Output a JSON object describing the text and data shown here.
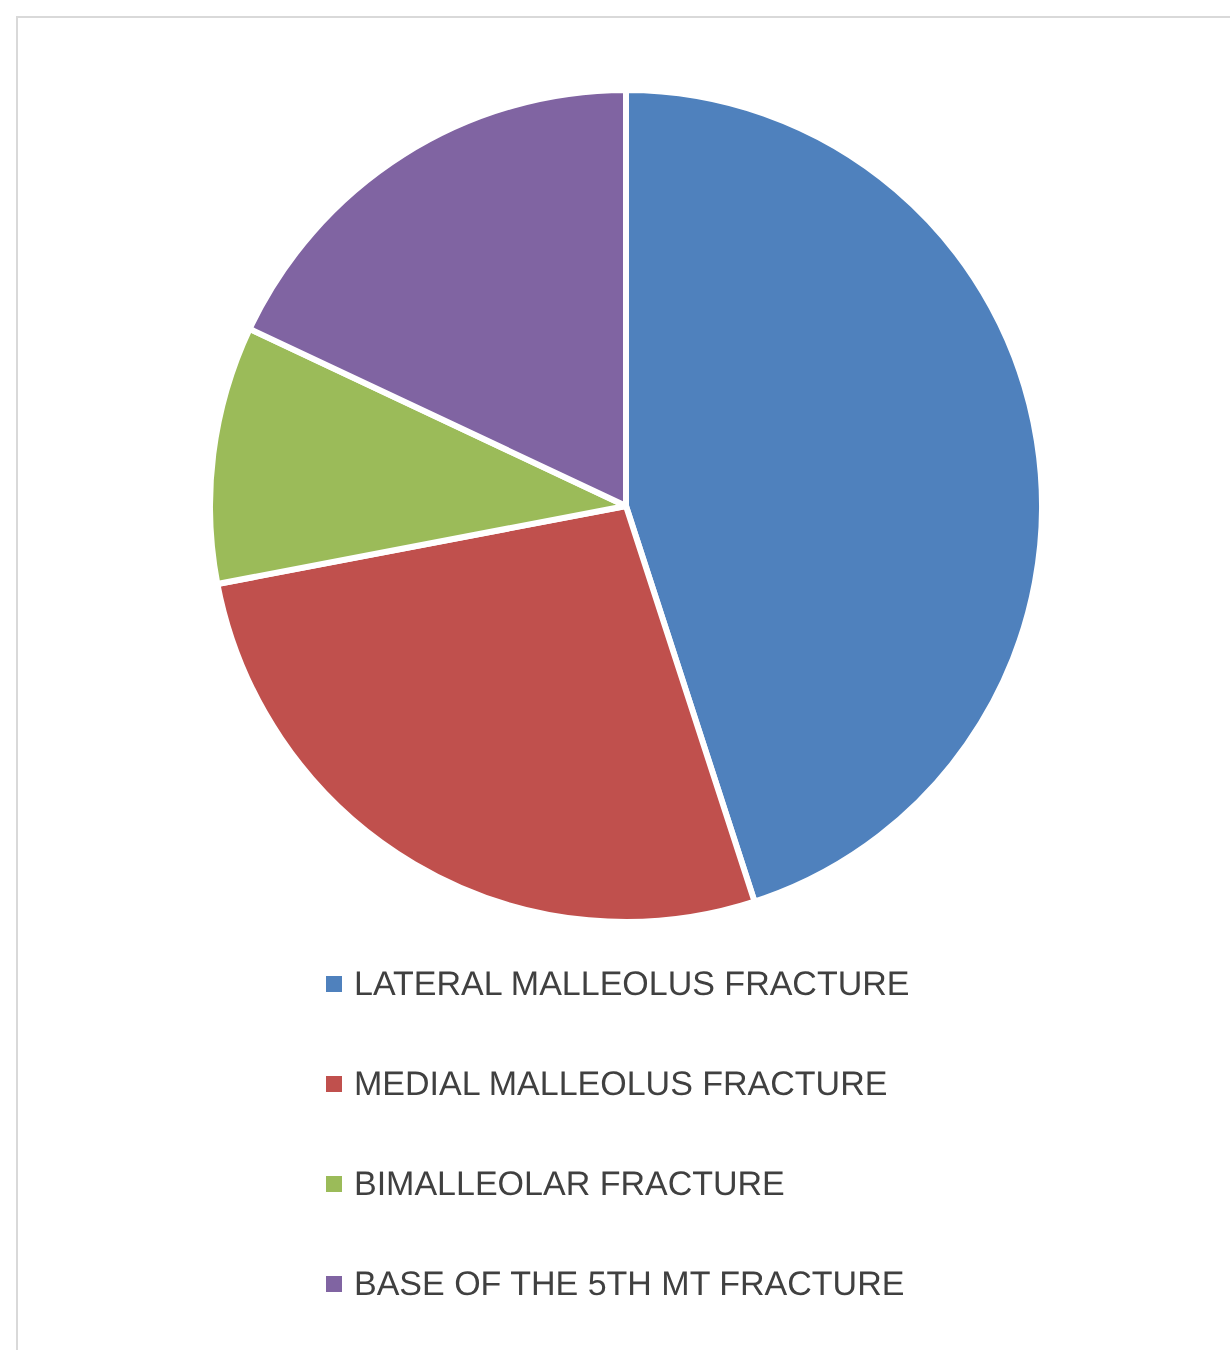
{
  "chart_data": {
    "type": "pie",
    "categories": [
      "LATERAL MALLEOLUS FRACTURE",
      "MEDIAL MALLEOLUS FRACTURE",
      "BIMALLEOLAR FRACTURE",
      "BASE OF THE 5TH MT FRACTURE"
    ],
    "values": [
      45,
      27,
      10,
      18
    ],
    "colors": [
      "#4f81bd",
      "#c0504d",
      "#9bbb59",
      "#8064a2"
    ],
    "legend": "bottom"
  }
}
